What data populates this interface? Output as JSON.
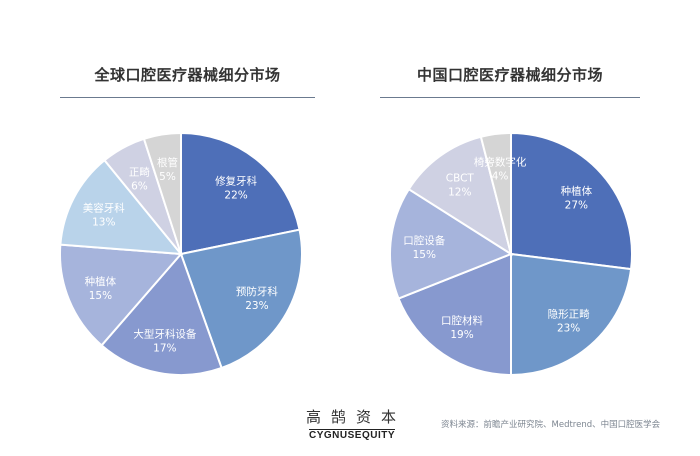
{
  "chart_data": [
    {
      "type": "pie",
      "title": "全球口腔医疗器械细分市场",
      "categories": [
        "修复牙科",
        "预防牙科",
        "大型牙科设备",
        "种植体",
        "美容牙科",
        "正畸",
        "根管"
      ],
      "values": [
        22,
        23,
        17,
        15,
        13,
        6,
        5
      ],
      "labels": [
        "22%",
        "23%",
        "17%",
        "15%",
        "13%",
        "6%",
        "5%"
      ],
      "colors": [
        "#4e6fb8",
        "#6f97c9",
        "#8799cf",
        "#a6b4dc",
        "#b9d3ea",
        "#cfd1e3",
        "#d5d5d5"
      ],
      "start": "12 o'clock",
      "direction": "clockwise"
    },
    {
      "type": "pie",
      "title": "中国口腔医疗器械细分市场",
      "categories": [
        "种植体",
        "隐形正畸",
        "口腔材料",
        "口腔设备",
        "CBCT",
        "椅旁数字化"
      ],
      "values": [
        27,
        23,
        19,
        15,
        12,
        4
      ],
      "labels": [
        "27%",
        "23%",
        "19%",
        "15%",
        "12%",
        "4%"
      ],
      "colors": [
        "#4e6fb8",
        "#6f97c9",
        "#8799cf",
        "#a6b4dc",
        "#cfd1e3",
        "#d5d5d5"
      ],
      "start": "12 o'clock",
      "direction": "clockwise"
    }
  ],
  "logo": {
    "chinese": "高鹄资本",
    "english_left": "CYGNUS",
    "english_right": "EQUITY"
  },
  "source": "资料来源：前瞻产业研究院、Medtrend、中国口腔医学会"
}
